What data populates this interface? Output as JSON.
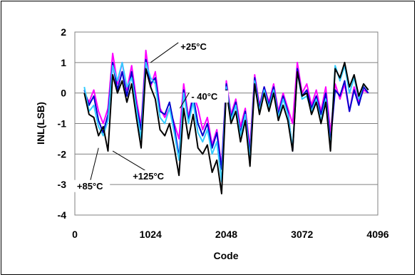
{
  "chart_data": {
    "type": "line",
    "xlabel": "Code",
    "ylabel": "INL(LSB)",
    "xlim": [
      0,
      4096
    ],
    "ylim": [
      -4,
      2
    ],
    "x_ticks": [
      0,
      1024,
      2048,
      3072,
      4096
    ],
    "x_tick_labels": [
      "0",
      "1024",
      "2048",
      "3072",
      "4096"
    ],
    "y_ticks": [
      2,
      1,
      0,
      -1,
      -2,
      -3,
      -4
    ],
    "y_tick_labels": [
      "2",
      "1",
      "0",
      "-1",
      "-2",
      "-3",
      "-4"
    ],
    "grid": "horizontal",
    "series": [
      {
        "name": "+25°C",
        "color": "#ff00ff",
        "x": [
          128,
          192,
          256,
          320,
          384,
          448,
          512,
          576,
          640,
          704,
          768,
          832,
          896,
          960,
          1024,
          1088,
          1152,
          1216,
          1280,
          1344,
          1408,
          1472,
          1536,
          1600,
          1664,
          1728,
          1792,
          1856,
          1920,
          1984,
          2048,
          2112,
          2176,
          2240,
          2304,
          2368,
          2432,
          2496,
          2560,
          2624,
          2688,
          2752,
          2816,
          2880,
          2944,
          3008,
          3072,
          3136,
          3200,
          3264,
          3328,
          3392,
          3456,
          3520,
          3584,
          3648,
          3712,
          3776,
          3840,
          3904,
          3968
        ],
        "y": [
          0.0,
          -0.3,
          0.1,
          -0.6,
          -1.0,
          -0.5,
          1.3,
          0.3,
          1.0,
          0.1,
          0.9,
          -0.2,
          -1.1,
          1.4,
          0.2,
          0.7,
          -0.5,
          -0.8,
          -0.5,
          -1.0,
          -1.5,
          0.3,
          -0.8,
          0.0,
          -0.5,
          -1.2,
          -0.8,
          -1.7,
          -1.2,
          -2.4,
          0.4,
          -0.7,
          -0.2,
          -1.1,
          -0.5,
          -1.8,
          0.6,
          -0.4,
          0.2,
          -0.3,
          0.3,
          -0.6,
          0.0,
          -0.5,
          -1.0,
          1.0,
          0.0,
          0.3,
          -0.4,
          0.1,
          -0.6,
          0.2,
          -1.3,
          0.3,
          -0.2,
          0.3,
          -0.6,
          0.2,
          -0.3,
          0.1,
          0.0
        ]
      },
      {
        "name": "- 40°C",
        "color": "#0000cc",
        "x": [
          128,
          192,
          256,
          320,
          384,
          448,
          512,
          576,
          640,
          704,
          768,
          832,
          896,
          960,
          1024,
          1088,
          1152,
          1216,
          1280,
          1344,
          1408,
          1472,
          1536,
          1600,
          1664,
          1728,
          1792,
          1856,
          1920,
          1984,
          2048,
          2112,
          2176,
          2240,
          2304,
          2368,
          2432,
          2496,
          2560,
          2624,
          2688,
          2752,
          2816,
          2880,
          2944,
          3008,
          3072,
          3136,
          3200,
          3264,
          3328,
          3392,
          3456,
          3520,
          3584,
          3648,
          3712,
          3776,
          3840,
          3904,
          3968
        ],
        "y": [
          0.1,
          -0.4,
          -0.1,
          -0.9,
          -1.3,
          -0.7,
          1.0,
          0.1,
          0.7,
          -0.1,
          0.7,
          -0.4,
          -1.2,
          1.1,
          0.3,
          0.5,
          -0.6,
          -0.7,
          -0.3,
          -1.1,
          -2.1,
          0.1,
          -0.9,
          -0.1,
          -1.0,
          -1.4,
          -1.0,
          -1.8,
          -1.3,
          -2.5,
          0.3,
          -0.8,
          -0.3,
          -1.3,
          -0.6,
          -2.0,
          0.5,
          -0.5,
          0.2,
          -0.4,
          0.2,
          -0.7,
          -0.1,
          -0.6,
          -1.9,
          0.8,
          -0.1,
          0.1,
          -0.5,
          -0.1,
          -0.7,
          0.0,
          -1.6,
          0.1,
          -0.1,
          0.4,
          -0.6,
          0.1,
          -0.4,
          0.2,
          0.0
        ]
      },
      {
        "name": "+85°C",
        "color": "#33ccff",
        "x": [
          128,
          192,
          256,
          320,
          384,
          448,
          512,
          576,
          640,
          704,
          768,
          832,
          896,
          960,
          1024,
          1088,
          1152,
          1216,
          1280,
          1344,
          1408,
          1472,
          1536,
          1600,
          1664,
          1728,
          1792,
          1856,
          1920,
          1984,
          2048,
          2112,
          2176,
          2240,
          2304,
          2368,
          2432,
          2496,
          2560,
          2624,
          2688,
          2752,
          2816,
          2880,
          2944,
          3008,
          3072,
          3136,
          3200,
          3264,
          3328,
          3392,
          3456,
          3520,
          3584,
          3648,
          3712,
          3776,
          3840,
          3904,
          3968
        ],
        "y": [
          0.2,
          -0.6,
          -0.4,
          -1.1,
          -1.4,
          -0.9,
          0.9,
          0.4,
          1.0,
          0.2,
          0.5,
          -0.5,
          -1.5,
          1.0,
          0.5,
          0.3,
          -0.8,
          -1.0,
          -0.5,
          -1.3,
          -2.2,
          0.0,
          -1.0,
          -0.3,
          -1.3,
          -1.6,
          -1.2,
          -2.0,
          -1.6,
          -2.9,
          0.2,
          -0.9,
          -0.4,
          -1.4,
          -0.7,
          -2.2,
          0.4,
          -0.6,
          0.1,
          -0.5,
          0.1,
          -0.8,
          -0.2,
          -0.7,
          -1.8,
          0.7,
          -0.2,
          -0.1,
          -0.6,
          -0.2,
          -0.9,
          -0.2,
          -1.8,
          0.9,
          0.4,
          0.9,
          0.0,
          0.5,
          -0.2,
          0.3,
          0.1
        ]
      },
      {
        "name": "+125°C",
        "color": "#000000",
        "x": [
          128,
          192,
          256,
          320,
          384,
          448,
          512,
          576,
          640,
          704,
          768,
          832,
          896,
          960,
          1024,
          1088,
          1152,
          1216,
          1280,
          1344,
          1408,
          1472,
          1536,
          1600,
          1664,
          1728,
          1792,
          1856,
          1920,
          1984,
          2048,
          2112,
          2176,
          2240,
          2304,
          2368,
          2432,
          2496,
          2560,
          2624,
          2688,
          2752,
          2816,
          2880,
          2944,
          3008,
          3072,
          3136,
          3200,
          3264,
          3328,
          3392,
          3456,
          3520,
          3584,
          3648,
          3712,
          3776,
          3840,
          3904,
          3968
        ],
        "y": [
          0.0,
          -0.7,
          -0.8,
          -1.4,
          -1.1,
          -1.9,
          0.6,
          0.0,
          0.4,
          -0.3,
          0.3,
          -0.8,
          -1.8,
          0.8,
          0.2,
          -0.2,
          -1.2,
          -1.4,
          -1.0,
          -1.8,
          -2.7,
          -0.5,
          -1.5,
          -0.7,
          -1.8,
          -2.0,
          -1.7,
          -2.6,
          -2.2,
          -3.3,
          0.1,
          -1.0,
          -0.6,
          -1.6,
          -0.9,
          -2.4,
          0.3,
          -0.7,
          0.0,
          -0.6,
          0.0,
          -0.9,
          -0.4,
          -0.9,
          -1.9,
          0.7,
          -0.1,
          0.0,
          -0.7,
          -0.3,
          -1.0,
          -0.3,
          -1.9,
          0.8,
          0.5,
          1.0,
          0.2,
          0.6,
          -0.1,
          0.3,
          0.1
        ]
      }
    ],
    "annotations": [
      {
        "text": "+25°C",
        "x": 1024,
        "y": 1.0
      },
      {
        "text": "- 40°C",
        "x": 1420,
        "y": -0.5
      },
      {
        "text": "+85°C",
        "x": 320,
        "y": -1.8
      },
      {
        "text": "+125°C",
        "x": 512,
        "y": -1.9
      }
    ]
  }
}
